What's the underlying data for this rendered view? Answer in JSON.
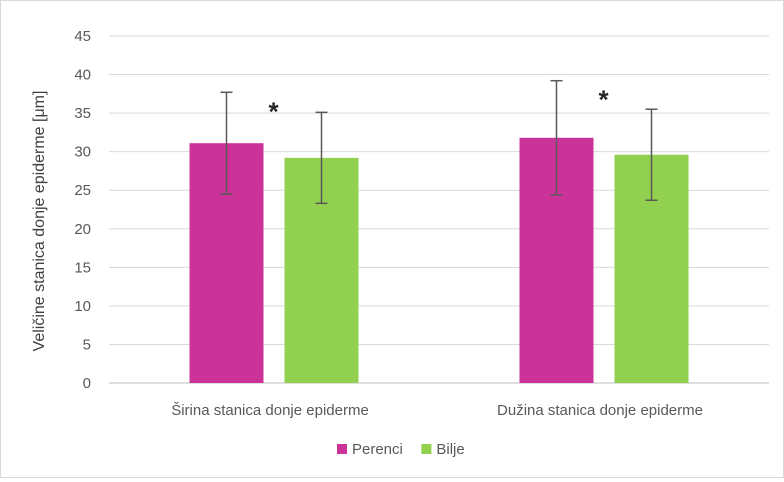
{
  "chart_data": {
    "type": "bar",
    "title": "",
    "xlabel": "",
    "ylabel": "Veličine stanica donje epiderme [μm]",
    "ylim": [
      0,
      45
    ],
    "yticks": [
      0,
      5,
      10,
      15,
      20,
      25,
      30,
      35,
      40,
      45
    ],
    "grid": true,
    "legend_position": "bottom",
    "categories": [
      "Širina stanica donje epiderme",
      "Dužina stanica donje epiderme"
    ],
    "series": [
      {
        "name": "Perenci",
        "color": "#cc3399",
        "values": [
          31.1,
          31.8
        ],
        "error": [
          6.6,
          7.4
        ]
      },
      {
        "name": "Bilje",
        "color": "#92d050",
        "values": [
          29.2,
          29.6
        ],
        "error": [
          5.9,
          5.9
        ]
      }
    ],
    "annotations": [
      "*",
      "*"
    ]
  }
}
